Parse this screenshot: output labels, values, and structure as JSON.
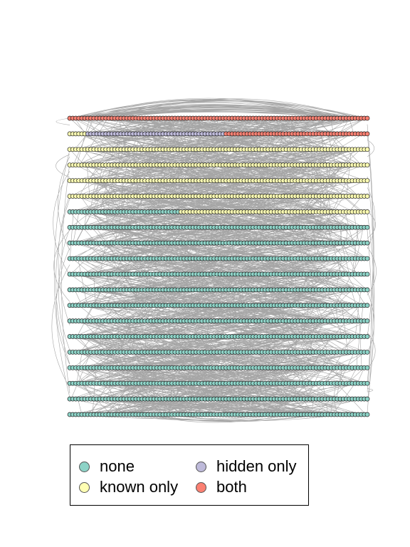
{
  "colors": {
    "none": "#8dd3c7",
    "known": "#ffffb3",
    "hidden": "#bebada",
    "both": "#fb8072",
    "edge": "#a6a6a6",
    "node_stroke": "#222222"
  },
  "network": {
    "rows": 20,
    "nodes_per_row": 100,
    "row_groups": [
      [
        {
          "group": "both",
          "count": 100
        }
      ],
      [
        {
          "group": "known",
          "count": 6
        },
        {
          "group": "hidden",
          "count": 46
        },
        {
          "group": "both",
          "count": 48
        }
      ],
      [
        {
          "group": "known",
          "count": 100
        }
      ],
      [
        {
          "group": "known",
          "count": 100
        }
      ],
      [
        {
          "group": "known",
          "count": 100
        }
      ],
      [
        {
          "group": "known",
          "count": 100
        }
      ],
      [
        {
          "group": "none",
          "count": 37
        },
        {
          "group": "known",
          "count": 63
        }
      ],
      [
        {
          "group": "none",
          "count": 100
        }
      ],
      [
        {
          "group": "none",
          "count": 100
        }
      ],
      [
        {
          "group": "none",
          "count": 100
        }
      ],
      [
        {
          "group": "none",
          "count": 100
        }
      ],
      [
        {
          "group": "none",
          "count": 100
        }
      ],
      [
        {
          "group": "none",
          "count": 100
        }
      ],
      [
        {
          "group": "none",
          "count": 100
        }
      ],
      [
        {
          "group": "none",
          "count": 100
        }
      ],
      [
        {
          "group": "none",
          "count": 100
        }
      ],
      [
        {
          "group": "none",
          "count": 100
        }
      ],
      [
        {
          "group": "none",
          "count": 100
        }
      ],
      [
        {
          "group": "none",
          "count": 100
        }
      ],
      [
        {
          "group": "none",
          "count": 100
        }
      ]
    ]
  },
  "legend": {
    "items": [
      {
        "key": "none",
        "label": "none"
      },
      {
        "key": "known",
        "label": "known only"
      },
      {
        "key": "hidden",
        "label": "hidden only"
      },
      {
        "key": "both",
        "label": "both"
      }
    ]
  }
}
